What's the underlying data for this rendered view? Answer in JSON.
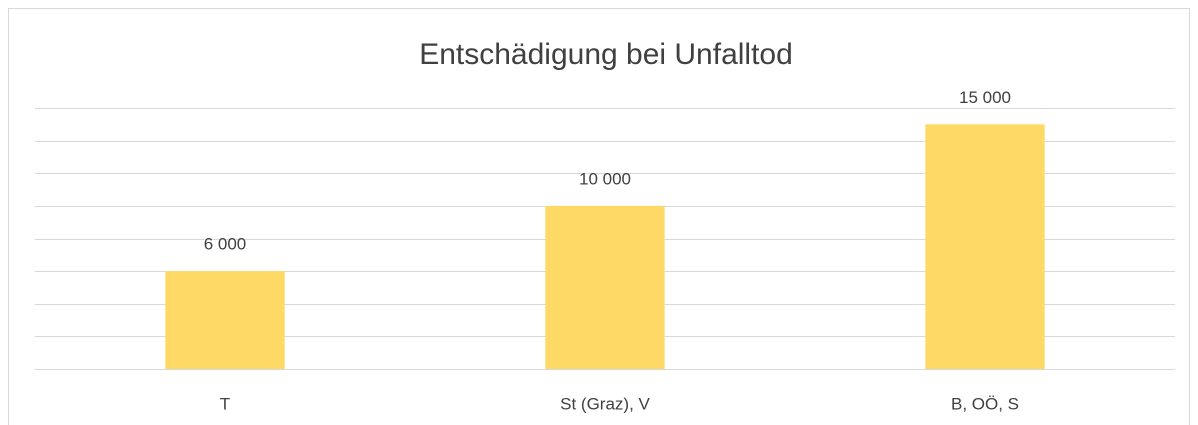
{
  "chart_data": {
    "type": "bar",
    "title": "Entschädigung bei Unfalltod",
    "categories": [
      "T",
      "St (Graz), V",
      "B, OÖ, S"
    ],
    "values": [
      6000,
      10000,
      15000
    ],
    "value_labels": [
      "6 000",
      "10 000",
      "15 000"
    ],
    "color": "#ffd966",
    "ylim": [
      0,
      16000
    ],
    "yticks": [
      0,
      2000,
      4000,
      6000,
      8000,
      10000,
      12000,
      14000,
      16000
    ],
    "grid": true
  }
}
